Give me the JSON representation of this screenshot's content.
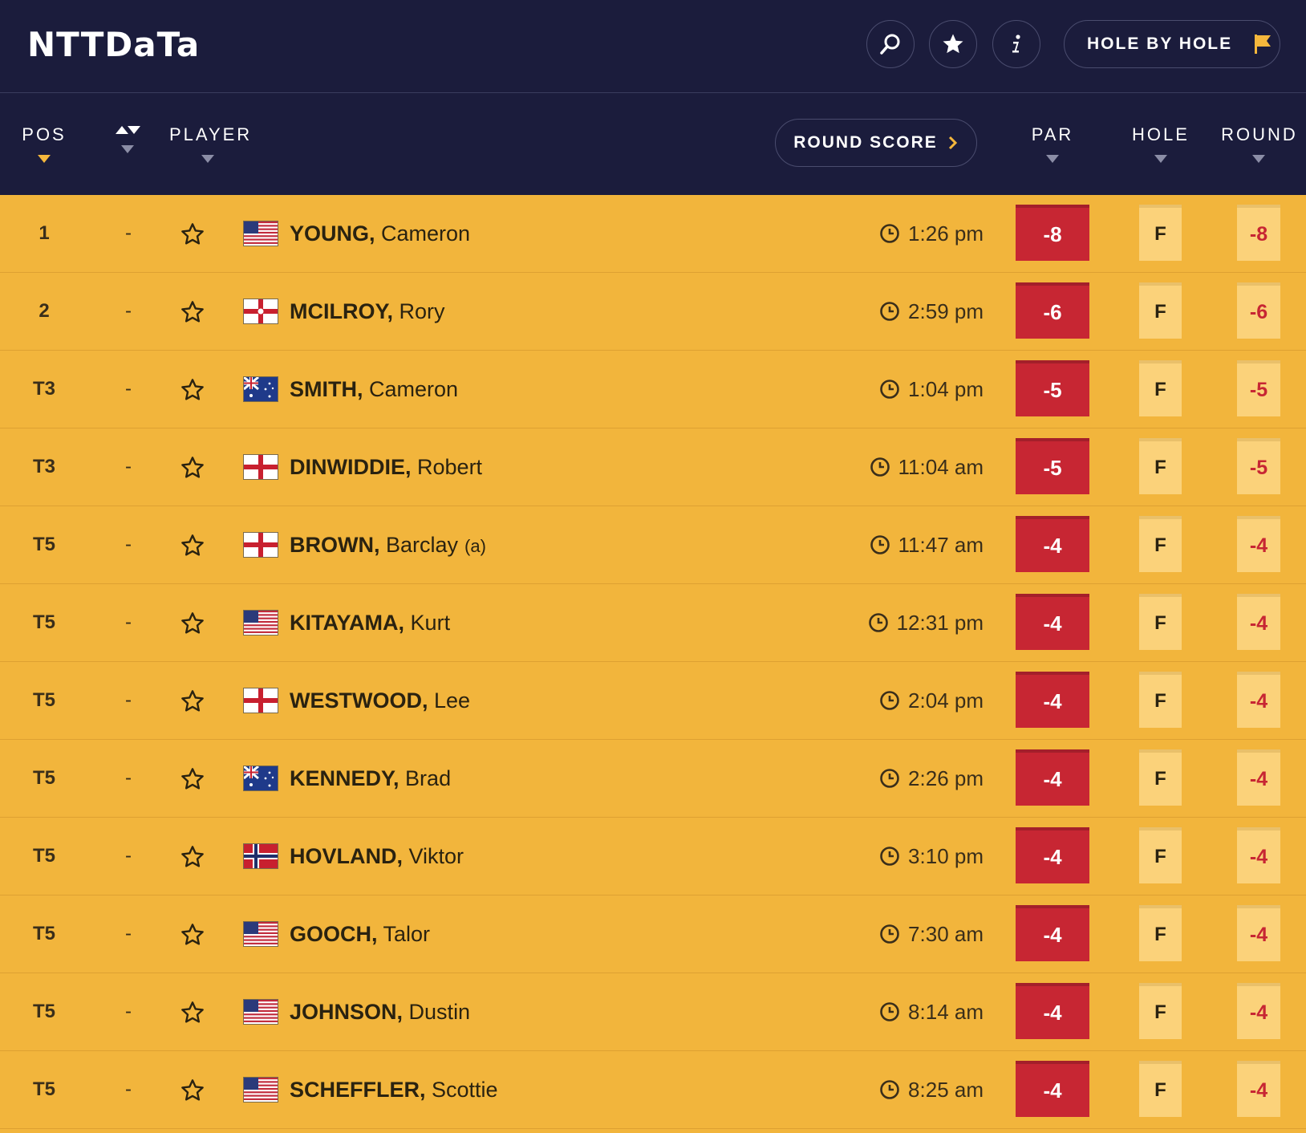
{
  "header": {
    "logo_text": "NTTDaTa",
    "search_icon": "search-icon",
    "favorites_icon": "star-icon",
    "info_icon": "info-icon",
    "hole_by_hole_label": "HOLE BY HOLE",
    "hole_by_hole_icon": "flag-icon"
  },
  "columns": {
    "pos": "POS",
    "player": "PLAYER",
    "round_score": "ROUND SCORE",
    "par": "PAR",
    "hole": "HOLE",
    "round": "ROUND"
  },
  "colors": {
    "header_bg": "#1b1c3c",
    "row_bg": "#f2b53c",
    "par_red": "#c72633",
    "cell_light": "#fbd27a"
  },
  "players": [
    {
      "pos": "1",
      "move": "-",
      "flag": "usa",
      "last": "YOUNG,",
      "first": "Cameron",
      "amateur": "",
      "tee_time": "1:26 pm",
      "par": "-8",
      "hole": "F",
      "round": "-8"
    },
    {
      "pos": "2",
      "move": "-",
      "flag": "northern-ireland",
      "last": "MCILROY,",
      "first": "Rory",
      "amateur": "",
      "tee_time": "2:59 pm",
      "par": "-6",
      "hole": "F",
      "round": "-6"
    },
    {
      "pos": "T3",
      "move": "-",
      "flag": "australia",
      "last": "SMITH,",
      "first": "Cameron",
      "amateur": "",
      "tee_time": "1:04 pm",
      "par": "-5",
      "hole": "F",
      "round": "-5"
    },
    {
      "pos": "T3",
      "move": "-",
      "flag": "england",
      "last": "DINWIDDIE,",
      "first": "Robert",
      "amateur": "",
      "tee_time": "11:04 am",
      "par": "-5",
      "hole": "F",
      "round": "-5"
    },
    {
      "pos": "T5",
      "move": "-",
      "flag": "england",
      "last": "BROWN,",
      "first": "Barclay",
      "amateur": "(a)",
      "tee_time": "11:47 am",
      "par": "-4",
      "hole": "F",
      "round": "-4"
    },
    {
      "pos": "T5",
      "move": "-",
      "flag": "usa",
      "last": "KITAYAMA,",
      "first": "Kurt",
      "amateur": "",
      "tee_time": "12:31 pm",
      "par": "-4",
      "hole": "F",
      "round": "-4"
    },
    {
      "pos": "T5",
      "move": "-",
      "flag": "england",
      "last": "WESTWOOD,",
      "first": "Lee",
      "amateur": "",
      "tee_time": "2:04 pm",
      "par": "-4",
      "hole": "F",
      "round": "-4"
    },
    {
      "pos": "T5",
      "move": "-",
      "flag": "australia",
      "last": "KENNEDY,",
      "first": "Brad",
      "amateur": "",
      "tee_time": "2:26 pm",
      "par": "-4",
      "hole": "F",
      "round": "-4"
    },
    {
      "pos": "T5",
      "move": "-",
      "flag": "norway",
      "last": "HOVLAND,",
      "first": "Viktor",
      "amateur": "",
      "tee_time": "3:10 pm",
      "par": "-4",
      "hole": "F",
      "round": "-4"
    },
    {
      "pos": "T5",
      "move": "-",
      "flag": "usa",
      "last": "GOOCH,",
      "first": "Talor",
      "amateur": "",
      "tee_time": "7:30 am",
      "par": "-4",
      "hole": "F",
      "round": "-4"
    },
    {
      "pos": "T5",
      "move": "-",
      "flag": "usa",
      "last": "JOHNSON,",
      "first": "Dustin",
      "amateur": "",
      "tee_time": "8:14 am",
      "par": "-4",
      "hole": "F",
      "round": "-4"
    },
    {
      "pos": "T5",
      "move": "-",
      "flag": "usa",
      "last": "SCHEFFLER,",
      "first": "Scottie",
      "amateur": "",
      "tee_time": "8:25 am",
      "par": "-4",
      "hole": "F",
      "round": "-4"
    }
  ]
}
